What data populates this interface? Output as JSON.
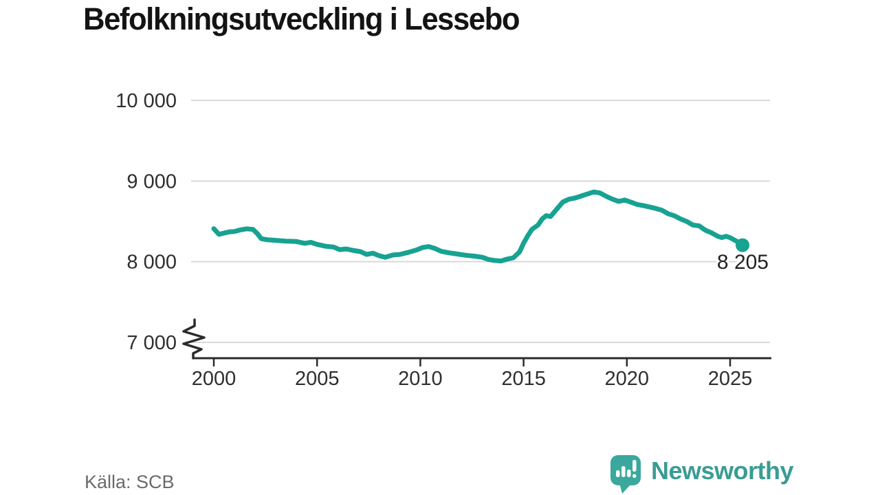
{
  "header": {
    "title": "Befolkningsutveckling i Lessebo"
  },
  "footer": {
    "source": "Källa: SCB",
    "brand_name": "Newsworthy",
    "logo_icon": "bar-chart-speech-bubble-icon"
  },
  "colors": {
    "line": "#17a292",
    "grid": "#d9d9d9",
    "axis": "#2b2b2b",
    "tick_text": "#2e2e2e",
    "title_text": "#141414",
    "source_text": "#6b6b6b",
    "brand_teal": "#3a9c94",
    "logo_bubble": "#3aa89d",
    "background": "#ffffff"
  },
  "chart_data": {
    "type": "line",
    "title": "Befolkningsutveckling i Lessebo",
    "xlabel": "",
    "ylabel": "",
    "source": "Källa: SCB",
    "xlim": [
      1999.1,
      2027.0
    ],
    "ylim": [
      7000,
      10000
    ],
    "axis_break_at_bottom": true,
    "grid": "horizontal",
    "legend_position": "none",
    "x_ticks": [
      {
        "value": 2000,
        "label": "2000"
      },
      {
        "value": 2005,
        "label": "2005"
      },
      {
        "value": 2010,
        "label": "2010"
      },
      {
        "value": 2015,
        "label": "2015"
      },
      {
        "value": 2020,
        "label": "2020"
      },
      {
        "value": 2025,
        "label": "2025"
      }
    ],
    "y_ticks": [
      {
        "value": 7000,
        "label": "7 000"
      },
      {
        "value": 8000,
        "label": "8 000"
      },
      {
        "value": 9000,
        "label": "9 000"
      },
      {
        "value": 10000,
        "label": "10 000"
      }
    ],
    "end_label": {
      "text": "8 205",
      "value": 8205
    },
    "series": [
      {
        "name": "Befolkning",
        "color": "#17a292",
        "points": [
          [
            2000.0,
            8410
          ],
          [
            2000.25,
            8340
          ],
          [
            2000.5,
            8355
          ],
          [
            2000.75,
            8370
          ],
          [
            2001.0,
            8375
          ],
          [
            2001.3,
            8395
          ],
          [
            2001.6,
            8408
          ],
          [
            2001.9,
            8400
          ],
          [
            2002.1,
            8350
          ],
          [
            2002.3,
            8285
          ],
          [
            2002.6,
            8272
          ],
          [
            2003.0,
            8265
          ],
          [
            2003.5,
            8255
          ],
          [
            2004.0,
            8250
          ],
          [
            2004.4,
            8228
          ],
          [
            2004.7,
            8240
          ],
          [
            2005.0,
            8215
          ],
          [
            2005.4,
            8192
          ],
          [
            2005.8,
            8182
          ],
          [
            2006.1,
            8150
          ],
          [
            2006.4,
            8158
          ],
          [
            2006.8,
            8138
          ],
          [
            2007.1,
            8125
          ],
          [
            2007.4,
            8090
          ],
          [
            2007.7,
            8105
          ],
          [
            2008.0,
            8075
          ],
          [
            2008.3,
            8055
          ],
          [
            2008.7,
            8085
          ],
          [
            2009.0,
            8090
          ],
          [
            2009.4,
            8115
          ],
          [
            2009.8,
            8145
          ],
          [
            2010.1,
            8175
          ],
          [
            2010.4,
            8188
          ],
          [
            2010.7,
            8165
          ],
          [
            2011.0,
            8130
          ],
          [
            2011.4,
            8110
          ],
          [
            2011.8,
            8095
          ],
          [
            2012.2,
            8080
          ],
          [
            2012.6,
            8070
          ],
          [
            2013.0,
            8055
          ],
          [
            2013.3,
            8028
          ],
          [
            2013.6,
            8015
          ],
          [
            2013.9,
            8008
          ],
          [
            2014.2,
            8032
          ],
          [
            2014.5,
            8048
          ],
          [
            2014.8,
            8120
          ],
          [
            2015.0,
            8230
          ],
          [
            2015.2,
            8320
          ],
          [
            2015.4,
            8400
          ],
          [
            2015.7,
            8455
          ],
          [
            2015.9,
            8530
          ],
          [
            2016.1,
            8572
          ],
          [
            2016.3,
            8560
          ],
          [
            2016.6,
            8650
          ],
          [
            2016.9,
            8740
          ],
          [
            2017.2,
            8775
          ],
          [
            2017.5,
            8790
          ],
          [
            2017.8,
            8815
          ],
          [
            2018.1,
            8840
          ],
          [
            2018.4,
            8865
          ],
          [
            2018.7,
            8852
          ],
          [
            2019.0,
            8810
          ],
          [
            2019.3,
            8775
          ],
          [
            2019.6,
            8748
          ],
          [
            2019.9,
            8765
          ],
          [
            2020.2,
            8738
          ],
          [
            2020.5,
            8710
          ],
          [
            2020.8,
            8695
          ],
          [
            2021.1,
            8678
          ],
          [
            2021.4,
            8660
          ],
          [
            2021.7,
            8638
          ],
          [
            2022.0,
            8595
          ],
          [
            2022.3,
            8570
          ],
          [
            2022.6,
            8530
          ],
          [
            2022.9,
            8498
          ],
          [
            2023.2,
            8455
          ],
          [
            2023.5,
            8445
          ],
          [
            2023.8,
            8390
          ],
          [
            2024.1,
            8358
          ],
          [
            2024.4,
            8315
          ],
          [
            2024.6,
            8300
          ],
          [
            2024.8,
            8315
          ],
          [
            2025.0,
            8298
          ],
          [
            2025.3,
            8255
          ],
          [
            2025.6,
            8205
          ]
        ]
      }
    ]
  }
}
